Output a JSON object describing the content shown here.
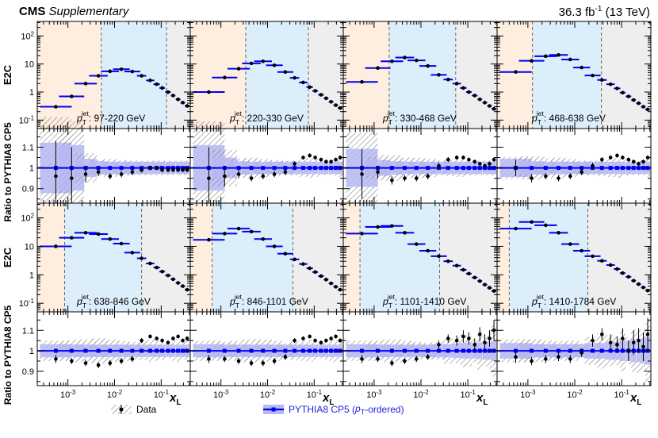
{
  "header": {
    "experiment": "CMS",
    "tag": "Supplementary",
    "lumi": "36.3 fb",
    "lumi_exp": "-1",
    "energy": "(13 TeV)"
  },
  "legend": {
    "data": "Data",
    "mc_main": "PYTHIA8 CP5 (",
    "mc_pt": "p",
    "mc_sub": "T",
    "mc_tail": "-ordered)"
  },
  "colors": {
    "data": "#000000",
    "mc": "#0000ee",
    "mc_band": "#b7b9f3",
    "low_region": "#fdeee0",
    "mid_region": "#ddeefb",
    "high_region": "#eeeeee"
  },
  "chart_data": {
    "type": "line",
    "xscale": "log",
    "xlabel": "x",
    "xlabel_sub": "L",
    "ylabel_top": "E2C",
    "ylabel_ratio": "Ratio to PYTHIA8 CP5",
    "x_ticks": [
      {
        "v": 0.001,
        "base": "10",
        "exp": "-3"
      },
      {
        "v": 0.01,
        "base": "10",
        "exp": "-2"
      },
      {
        "v": 0.1,
        "base": "10",
        "exp": "-1"
      }
    ],
    "e2c_ticks": [
      {
        "v": 0.1,
        "base": "10",
        "exp": "-1"
      },
      {
        "v": 1,
        "base": "1",
        "exp": ""
      },
      {
        "v": 10,
        "base": "10",
        "exp": ""
      },
      {
        "v": 100,
        "base": "10",
        "exp": "2"
      }
    ],
    "ratio_ticks": [
      0.9,
      1,
      1.1
    ],
    "ratio_tick_labels": [
      "0.9",
      "1",
      "1.1"
    ],
    "xlim": [
      0.00022,
      0.42
    ],
    "e2c_ylim": [
      0.05,
      330
    ],
    "ratio_ylim": [
      0.83,
      1.19
    ],
    "pt_label_prefix": "p",
    "pt_label_sub": "T",
    "pt_label_sup": "jet",
    "unit": "GeV",
    "bins": [
      {
        "range": "97-220",
        "region_edges": [
          0.0052,
          0.13
        ],
        "e2c": [
          0.3,
          0.7,
          2.0,
          3.8,
          5.5,
          6.5,
          5.4,
          3.8,
          2.6,
          1.9,
          1.4,
          1.0,
          0.75,
          0.55,
          0.42,
          0.32
        ],
        "ratio": [
          0.96,
          0.95,
          0.97,
          0.98,
          0.96,
          0.97,
          0.98,
          0.99,
          1.0,
          1.0,
          0.99,
          0.99,
          0.99,
          0.99,
          0.99,
          0.99
        ],
        "ratio_err": [
          0.17,
          0.15,
          0.04,
          0.02,
          0.015,
          0.015,
          0.015,
          0.012,
          0.01,
          0.01,
          0.01,
          0.01,
          0.01,
          0.01,
          0.01,
          0.01
        ]
      },
      {
        "range": "220-330",
        "region_edges": [
          0.0034,
          0.075
        ],
        "e2c": [
          1.0,
          3.3,
          6.8,
          10.5,
          12.5,
          9.0,
          5.2,
          3.2,
          2.2,
          1.5,
          1.1,
          0.8,
          0.6,
          0.45,
          0.34,
          0.27
        ],
        "ratio": [
          0.95,
          0.96,
          0.97,
          0.95,
          0.96,
          0.97,
          0.98,
          1.02,
          1.05,
          1.06,
          1.05,
          1.04,
          1.03,
          1.03,
          1.04,
          1.05
        ],
        "ratio_err": [
          0.15,
          0.05,
          0.02,
          0.015,
          0.015,
          0.015,
          0.015,
          0.012,
          0.01,
          0.01,
          0.01,
          0.01,
          0.01,
          0.01,
          0.01,
          0.01
        ]
      },
      {
        "range": "330-468",
        "region_edges": [
          0.0021,
          0.055
        ],
        "e2c": [
          2.3,
          7.2,
          12.5,
          17.0,
          13.5,
          8.5,
          4.1,
          2.8,
          2.0,
          1.4,
          1.0,
          0.75,
          0.55,
          0.42,
          0.32,
          0.25
        ],
        "ratio": [
          0.97,
          0.98,
          0.94,
          0.95,
          0.95,
          0.96,
          1.01,
          1.04,
          1.05,
          1.05,
          1.04,
          1.03,
          1.02,
          1.01,
          1.02,
          1.04
        ],
        "ratio_err": [
          0.12,
          0.03,
          0.02,
          0.015,
          0.015,
          0.015,
          0.015,
          0.012,
          0.01,
          0.01,
          0.01,
          0.01,
          0.01,
          0.01,
          0.01,
          0.01
        ]
      },
      {
        "range": "468-638",
        "region_edges": [
          0.00125,
          0.037
        ],
        "e2c": [
          5.2,
          13.0,
          19.0,
          21.0,
          14.5,
          7.5,
          3.9,
          2.7,
          1.9,
          1.35,
          0.95,
          0.7,
          0.52,
          0.4,
          0.3,
          0.24
        ],
        "ratio": [
          1.0,
          0.95,
          0.96,
          0.95,
          0.96,
          0.98,
          1.01,
          1.04,
          1.05,
          1.06,
          1.05,
          1.04,
          1.03,
          1.02,
          1.03,
          1.05
        ],
        "ratio_err": [
          0.04,
          0.02,
          0.015,
          0.015,
          0.015,
          0.015,
          0.015,
          0.012,
          0.01,
          0.01,
          0.01,
          0.01,
          0.01,
          0.01,
          0.01,
          0.01
        ]
      },
      {
        "range": "638-846",
        "region_edges": [
          0.00085,
          0.038
        ],
        "e2c": [
          10.0,
          20.0,
          30.0,
          27.0,
          18.0,
          12.5,
          6.0,
          3.8,
          2.5,
          1.8,
          1.3,
          0.95,
          0.7,
          0.52,
          0.4,
          0.3
        ],
        "ratio": [
          0.96,
          0.95,
          0.94,
          0.93,
          0.94,
          0.95,
          0.96,
          1.05,
          1.07,
          1.06,
          1.05,
          1.04,
          1.06,
          1.07,
          1.05,
          1.06
        ],
        "ratio_err": [
          0.02,
          0.015,
          0.015,
          0.015,
          0.015,
          0.015,
          0.015,
          0.012,
          0.01,
          0.01,
          0.01,
          0.01,
          0.01,
          0.01,
          0.01,
          0.01
        ]
      },
      {
        "range": "846-1101",
        "region_edges": [
          0.00065,
          0.035
        ],
        "e2c": [
          17.0,
          28.0,
          42.0,
          33.0,
          18.0,
          10.0,
          5.5,
          3.5,
          2.4,
          1.7,
          1.25,
          0.9,
          0.68,
          0.5,
          0.38,
          0.3
        ],
        "ratio": [
          0.96,
          0.96,
          0.95,
          0.94,
          0.94,
          0.95,
          0.97,
          1.05,
          1.06,
          1.07,
          1.05,
          1.04,
          1.05,
          1.06,
          1.07,
          1.05
        ],
        "ratio_err": [
          0.02,
          0.015,
          0.015,
          0.015,
          0.015,
          0.015,
          0.015,
          0.012,
          0.01,
          0.01,
          0.01,
          0.01,
          0.01,
          0.01,
          0.01,
          0.01
        ]
      },
      {
        "range": "1101-1410",
        "region_edges": [
          0.0005,
          0.025
        ],
        "e2c": [
          28.0,
          48.0,
          52.0,
          30.0,
          12.0,
          7.0,
          4.5,
          3.0,
          2.1,
          1.5,
          1.1,
          0.8,
          0.6,
          0.45,
          0.35,
          0.27
        ],
        "ratio": [
          0.96,
          0.96,
          0.94,
          0.95,
          0.96,
          0.97,
          1.03,
          1.06,
          1.05,
          1.07,
          1.06,
          1.03,
          1.08,
          1.04,
          1.06,
          1.1
        ],
        "ratio_err": [
          0.02,
          0.015,
          0.015,
          0.015,
          0.015,
          0.015,
          0.02,
          0.02,
          0.025,
          0.03,
          0.03,
          0.03,
          0.035,
          0.04,
          0.04,
          0.05
        ],
        "pt_range_text": "1101-1410"
      },
      {
        "range": "1410-1784",
        "region_edges": [
          0.0004,
          0.019
        ],
        "e2c": [
          42.0,
          72.0,
          55.0,
          30.0,
          12.0,
          7.0,
          4.5,
          3.1,
          2.2,
          1.6,
          1.15,
          0.85,
          0.62,
          0.47,
          0.36,
          0.28
        ],
        "ratio": [
          0.97,
          0.95,
          0.96,
          0.97,
          0.96,
          0.99,
          1.05,
          1.08,
          1.04,
          1.03,
          1.06,
          1.0,
          1.04,
          1.05,
          1.02,
          1.08
        ],
        "ratio_err": [
          0.03,
          0.02,
          0.02,
          0.02,
          0.02,
          0.02,
          0.03,
          0.03,
          0.04,
          0.04,
          0.05,
          0.05,
          0.06,
          0.06,
          0.07,
          0.08
        ]
      }
    ],
    "x_points": [
      0.00055,
      0.0012,
      0.0024,
      0.0045,
      0.008,
      0.014,
      0.024,
      0.038,
      0.058,
      0.08,
      0.105,
      0.14,
      0.18,
      0.23,
      0.29,
      0.36
    ],
    "x_halfwidth_log": [
      0.34,
      0.27,
      0.24,
      0.2,
      0.19,
      0.18,
      0.17,
      0.1,
      0.09,
      0.07,
      0.06,
      0.06,
      0.05,
      0.05,
      0.05,
      0.05
    ]
  }
}
